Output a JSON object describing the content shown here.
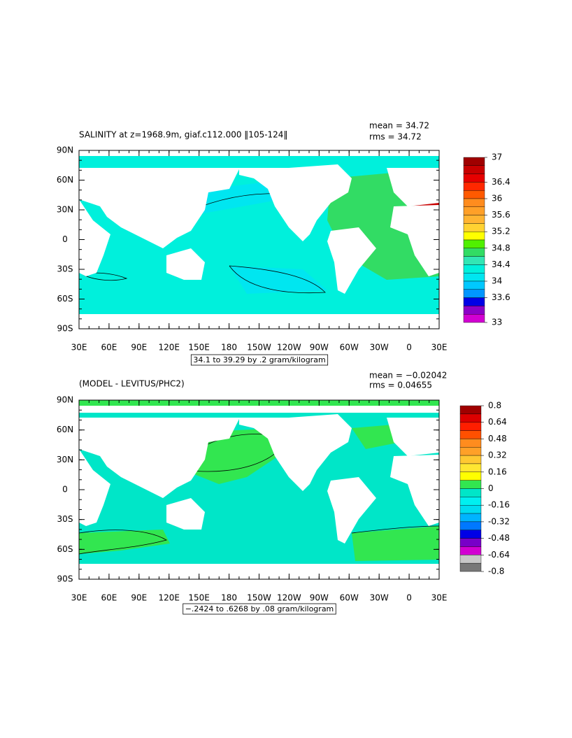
{
  "panels": [
    {
      "title": "SALINITY at z=1968.9m, giaf.c112.000 ‖105-124‖",
      "mean": "mean = 34.72",
      "rms": "rms = 34.72",
      "caption": "34.1 to 39.29 by .2 gram/kilogram",
      "colorbar": {
        "lim": [
          33,
          37
        ],
        "ticks": [
          37,
          36.4,
          36,
          35.6,
          35.2,
          34.8,
          34.4,
          34,
          33.6,
          33
        ],
        "colors": [
          "#a00000",
          "#c80000",
          "#e60000",
          "#ff2800",
          "#ff5a00",
          "#ff8c1e",
          "#ffa028",
          "#ffb432",
          "#ffd232",
          "#ffff00",
          "#50f000",
          "#32dc64",
          "#32e6b4",
          "#00f0dc",
          "#00e6f0",
          "#00c8ff",
          "#0096ff",
          "#0000e6",
          "#8c00c8",
          "#d200d2"
        ]
      }
    },
    {
      "title": "(MODEL - LEVITUS/PHC2)",
      "mean": "mean = −0.02042",
      "rms": "rms = 0.04655",
      "caption": "−.2424 to .6268 by .08 gram/kilogram",
      "colorbar": {
        "lim": [
          -0.8,
          0.8
        ],
        "ticks": [
          0.8,
          0.64,
          0.48,
          0.32,
          0.16,
          0,
          -0.16,
          -0.32,
          -0.48,
          -0.64,
          -0.8
        ],
        "colors": [
          "#a00000",
          "#dc0000",
          "#ff1e00",
          "#ff5000",
          "#ff8c1e",
          "#ffa028",
          "#ffc832",
          "#ffe632",
          "#ffff00",
          "#32e650",
          "#00e6c8",
          "#00f0f0",
          "#00dcf0",
          "#00b4ff",
          "#0078ff",
          "#0000e6",
          "#7800c8",
          "#d200d2",
          "#c8c8c8",
          "#787878"
        ]
      }
    }
  ],
  "lat_labels": [
    "90N",
    "60N",
    "30N",
    "0",
    "30S",
    "60S",
    "90S"
  ],
  "lon_labels": [
    "30E",
    "60E",
    "90E",
    "120E",
    "150E",
    "180",
    "150W",
    "120W",
    "90W",
    "60W",
    "30W",
    "0",
    "30E"
  ]
}
